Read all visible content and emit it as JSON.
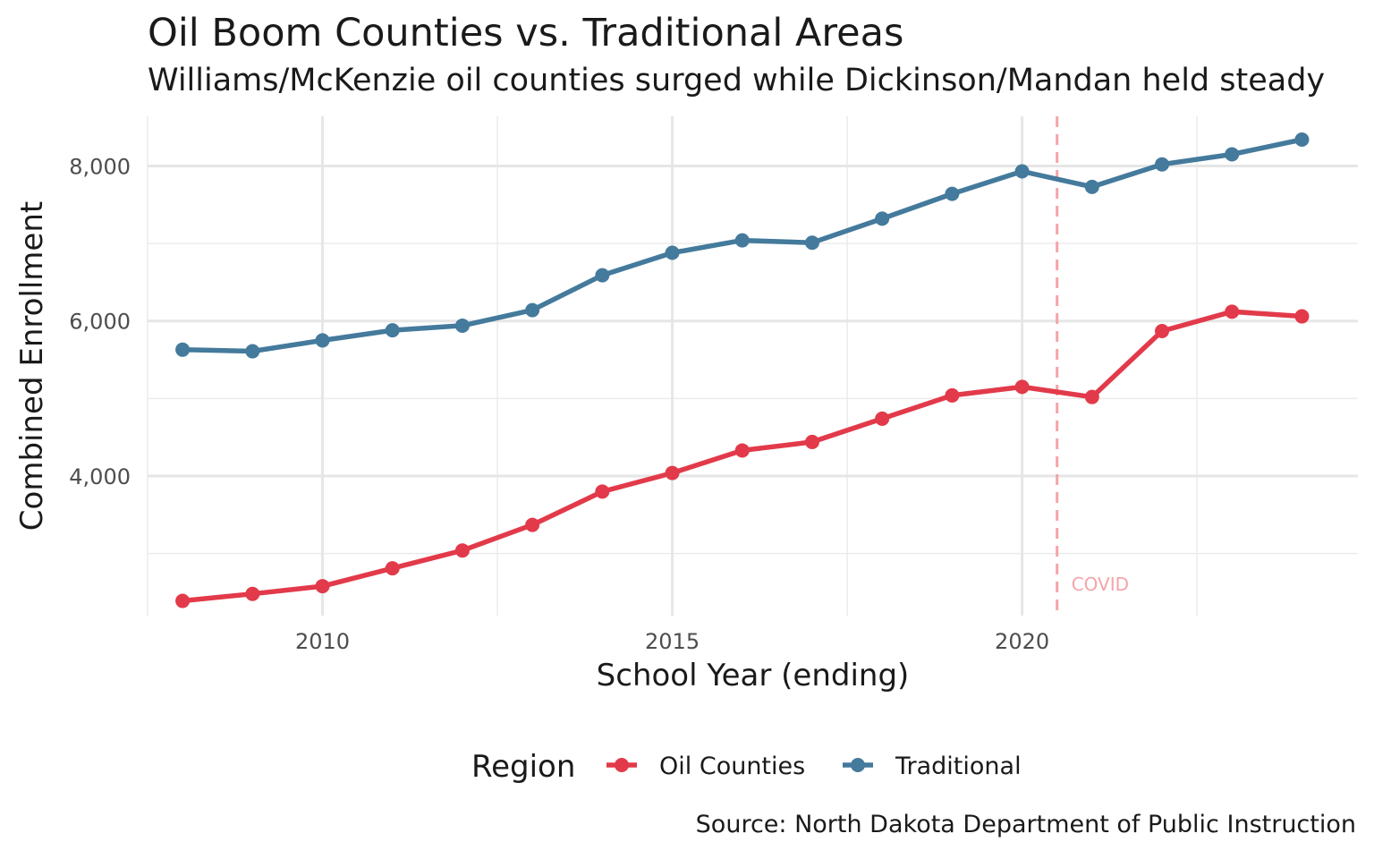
{
  "chart_data": {
    "type": "line",
    "title": "Oil Boom Counties vs. Traditional Areas",
    "subtitle": "Williams/McKenzie oil counties surged while Dickinson/Mandan held steady",
    "caption": "Source: North Dakota Department of Public Instruction",
    "xlabel": "School Year (ending)",
    "ylabel": "Combined Enrollment",
    "xlim": [
      2007.5,
      2024.8
    ],
    "ylim": [
      2200,
      8640
    ],
    "x_ticks": [
      2010,
      2015,
      2020
    ],
    "x_tick_labels": [
      "2010",
      "2015",
      "2020"
    ],
    "y_ticks": [
      4000,
      6000,
      8000
    ],
    "y_tick_labels": [
      "4,000",
      "6,000",
      "8,000"
    ],
    "grid": true,
    "legend": {
      "title": "Region",
      "position": "bottom"
    },
    "annotation": {
      "x": 2020.5,
      "label": "COVID",
      "color": "#f4a4a8"
    },
    "x": [
      2008,
      2009,
      2010,
      2011,
      2012,
      2013,
      2014,
      2015,
      2016,
      2017,
      2018,
      2019,
      2020,
      2021,
      2022,
      2023,
      2024
    ],
    "series": [
      {
        "name": "Oil Counties",
        "color": "#e23a4a",
        "values": [
          2390,
          2480,
          2580,
          2810,
          3040,
          3370,
          3800,
          4040,
          4330,
          4440,
          4740,
          5040,
          5150,
          5020,
          5870,
          6120,
          6060
        ]
      },
      {
        "name": "Traditional",
        "color": "#447a9c",
        "values": [
          5630,
          5610,
          5750,
          5880,
          5940,
          6140,
          6590,
          6880,
          7040,
          7010,
          7320,
          7640,
          7930,
          7730,
          8020,
          8150,
          8340
        ]
      }
    ]
  }
}
